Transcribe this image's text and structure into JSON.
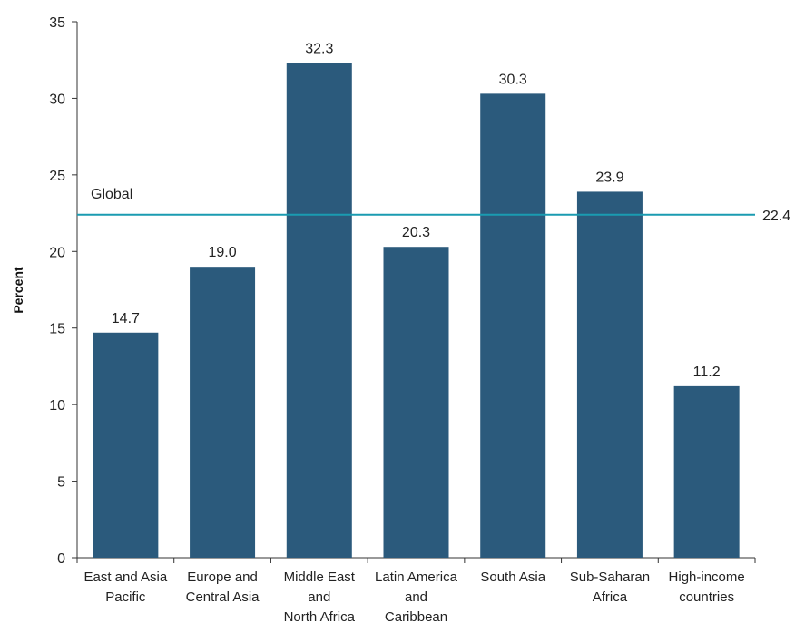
{
  "chart_data": {
    "type": "bar",
    "title": "",
    "xlabel": "",
    "ylabel": "Percent",
    "ylim": [
      0,
      35
    ],
    "yticks": [
      0,
      5,
      10,
      15,
      20,
      25,
      30,
      35
    ],
    "grid": false,
    "categories": [
      [
        "East and Asia",
        "Pacific"
      ],
      [
        "Europe and",
        "Central Asia"
      ],
      [
        "Middle East",
        "and",
        "North Africa"
      ],
      [
        "Latin America",
        "and",
        "Caribbean"
      ],
      [
        "South Asia"
      ],
      [
        "Sub-Saharan",
        "Africa"
      ],
      [
        "High-income",
        "countries"
      ]
    ],
    "values": [
      14.7,
      19.0,
      32.3,
      20.3,
      30.3,
      23.9,
      11.2
    ],
    "value_labels": [
      "14.7",
      "19.0",
      "32.3",
      "20.3",
      "30.3",
      "23.9",
      "11.2"
    ],
    "reference_line": {
      "name": "Global",
      "value": 22.4,
      "value_label": "22.4"
    },
    "colors": {
      "bar": "#2b5a7c",
      "reference_line": "#1a9bb1",
      "axis": "#333333"
    }
  }
}
